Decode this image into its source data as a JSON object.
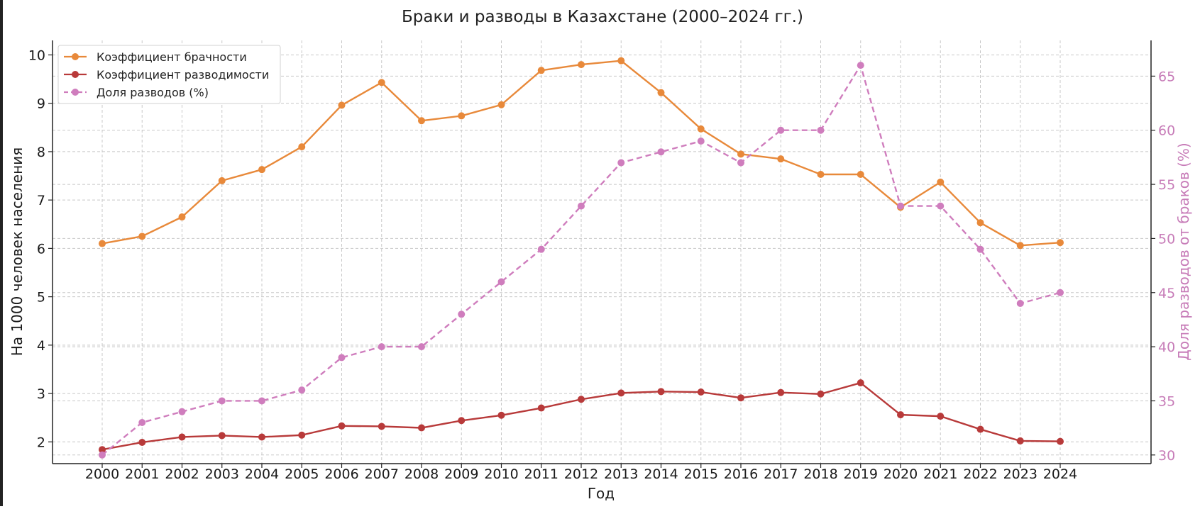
{
  "chart_data": {
    "type": "line",
    "title": "Браки и разводы в Казахстане (2000–2024 гг.)",
    "xlabel": "Год",
    "ylabel": "На 1000 человек населения",
    "y2label": "Доля разводов от браков (%)",
    "x": [
      "2000",
      "2001",
      "2002",
      "2003",
      "2004",
      "2005",
      "2006",
      "2007",
      "2008",
      "2009",
      "2010",
      "2011",
      "2012",
      "2013",
      "2014",
      "2015",
      "2016",
      "2017",
      "2018",
      "2019",
      "2020",
      "2021",
      "2022",
      "2023",
      "2024"
    ],
    "ylim": [
      1.55,
      10.3
    ],
    "y2lim": [
      29.2,
      68.3
    ],
    "yticks": [
      2,
      3,
      4,
      5,
      6,
      7,
      8,
      9,
      10
    ],
    "y2ticks": [
      30,
      35,
      40,
      45,
      50,
      55,
      60,
      65
    ],
    "grid": true,
    "legend_position": "top-left",
    "series": [
      {
        "name": "Коэффициент брачности",
        "axis": "left",
        "color": "#e8893a",
        "dashed": false,
        "values": [
          6.1,
          6.25,
          6.65,
          7.4,
          7.63,
          8.1,
          8.96,
          9.43,
          8.64,
          8.74,
          8.97,
          9.68,
          9.8,
          9.88,
          9.22,
          8.47,
          7.95,
          7.85,
          7.53,
          7.53,
          6.85,
          7.37,
          6.53,
          6.06,
          6.12
        ]
      },
      {
        "name": "Коэффициент разводимости",
        "axis": "left",
        "color": "#b83a3a",
        "dashed": false,
        "values": [
          1.84,
          1.99,
          2.1,
          2.13,
          2.1,
          2.14,
          2.33,
          2.32,
          2.29,
          2.44,
          2.55,
          2.7,
          2.88,
          3.01,
          3.04,
          3.03,
          2.91,
          3.02,
          2.99,
          3.22,
          2.56,
          2.53,
          2.26,
          2.02,
          2.01
        ]
      },
      {
        "name": "Доля разводов (%)",
        "axis": "right",
        "color": "#cf7dbd",
        "dashed": true,
        "values": [
          30,
          33,
          34,
          35,
          35,
          36,
          39,
          40,
          40,
          43,
          46,
          49,
          53,
          57,
          58,
          59,
          57,
          60,
          60,
          66,
          53,
          53,
          49,
          44,
          45
        ]
      }
    ]
  }
}
